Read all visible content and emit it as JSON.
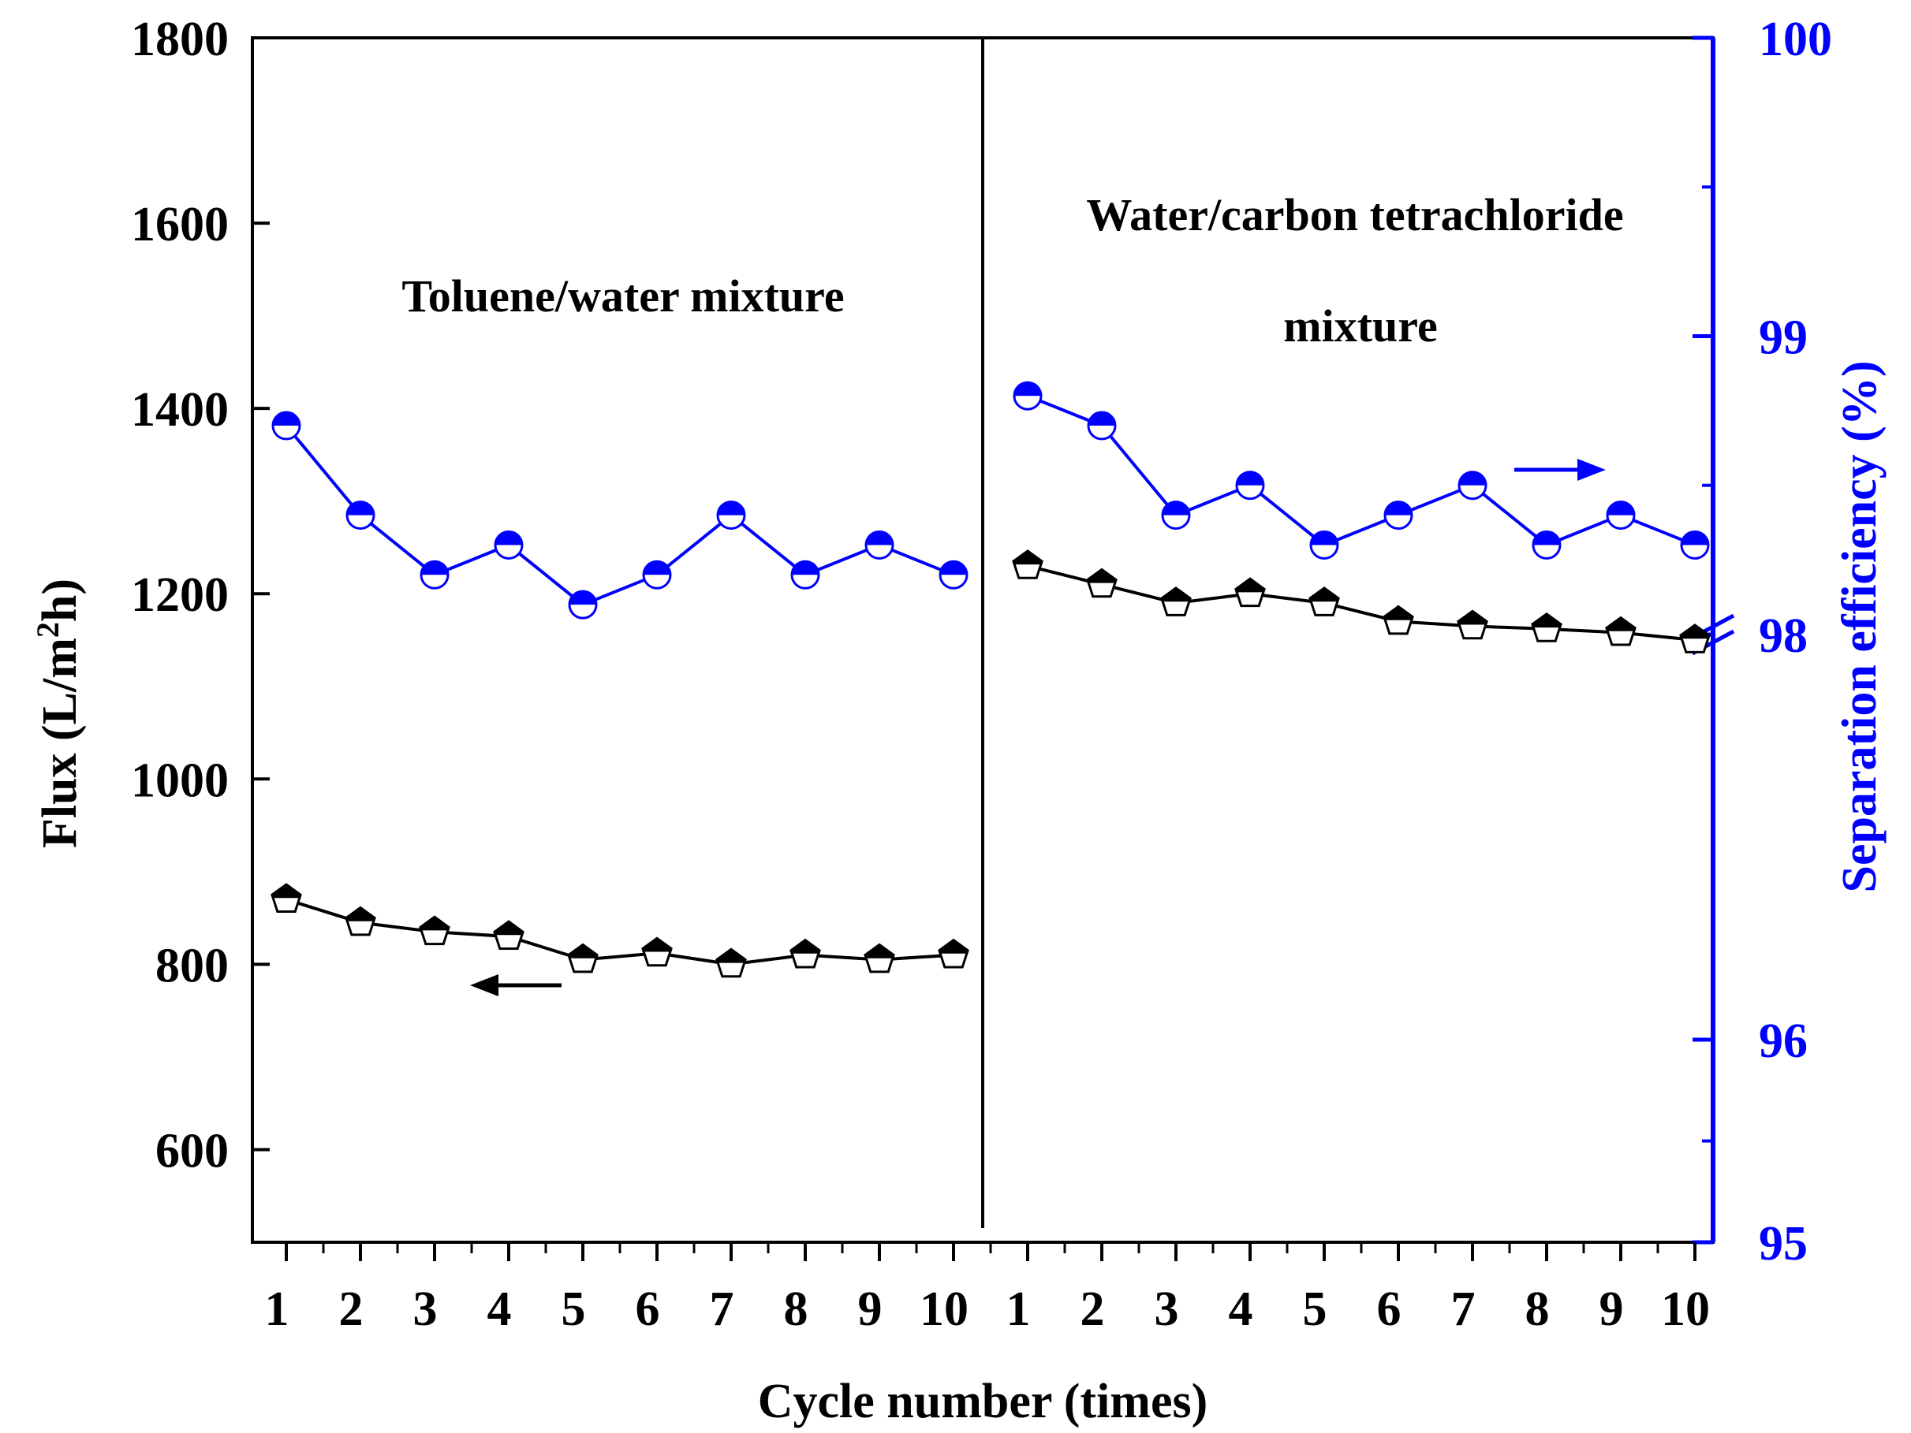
{
  "chart_data": {
    "type": "line",
    "xlabel": "Cycle number (times)",
    "ylabel_left": "Flux (L/m2h)",
    "ylabel_left_parts": [
      "Flux (L/m",
      "2",
      "h)"
    ],
    "ylabel_right": "Separation efficiency (%)",
    "categories": [
      "1",
      "2",
      "3",
      "4",
      "5",
      "6",
      "7",
      "8",
      "9",
      "10",
      "1",
      "2",
      "3",
      "4",
      "5",
      "6",
      "7",
      "8",
      "9",
      "10"
    ],
    "left_axis": {
      "range": [
        500,
        1800
      ],
      "ticks": [
        "600",
        "800",
        "1000",
        "1200",
        "1400",
        "1600",
        "1800"
      ],
      "tick_values": [
        600,
        800,
        1000,
        1200,
        1400,
        1600,
        1800
      ]
    },
    "right_axis": {
      "broken": true,
      "lower_segment": {
        "range": [
          95,
          98
        ],
        "ticks": [
          "95",
          "96",
          "98"
        ],
        "tick_values": [
          95,
          96,
          98
        ]
      },
      "upper_segment": {
        "range": [
          98,
          100
        ],
        "ticks": [
          "98",
          "99",
          "100"
        ],
        "tick_values": [
          98,
          99,
          100
        ]
      }
    },
    "panels": [
      {
        "label": "Toluene/water mixture",
        "cycles": [
          1,
          10
        ]
      },
      {
        "label_lines": [
          "Water/carbon tetrachloride",
          "mixture"
        ],
        "cycles": [
          1,
          10
        ]
      }
    ],
    "series": [
      {
        "name": "Flux",
        "axis": "left",
        "color": "#000000",
        "marker": "pentagon-half-filled",
        "segments": [
          [
            870,
            845,
            835,
            830,
            805,
            812,
            800,
            810,
            805,
            810
          ],
          [
            1230,
            1210,
            1190,
            1200,
            1190,
            1170,
            1165,
            1162,
            1158,
            1150
          ]
        ]
      },
      {
        "name": "Separation efficiency",
        "axis": "right",
        "color": "#0000ff",
        "marker": "circle-half-filled",
        "segments": [
          [
            98.7,
            98.4,
            98.2,
            98.3,
            98.1,
            98.2,
            98.4,
            98.2,
            98.3,
            98.2
          ],
          [
            98.8,
            98.7,
            98.4,
            98.5,
            98.3,
            98.4,
            98.5,
            98.3,
            98.4,
            98.3
          ]
        ]
      }
    ],
    "annotations": [
      {
        "type": "arrow",
        "points_to": "left",
        "series": "Flux"
      },
      {
        "type": "arrow",
        "points_to": "right",
        "series": "Separation efficiency"
      }
    ]
  }
}
